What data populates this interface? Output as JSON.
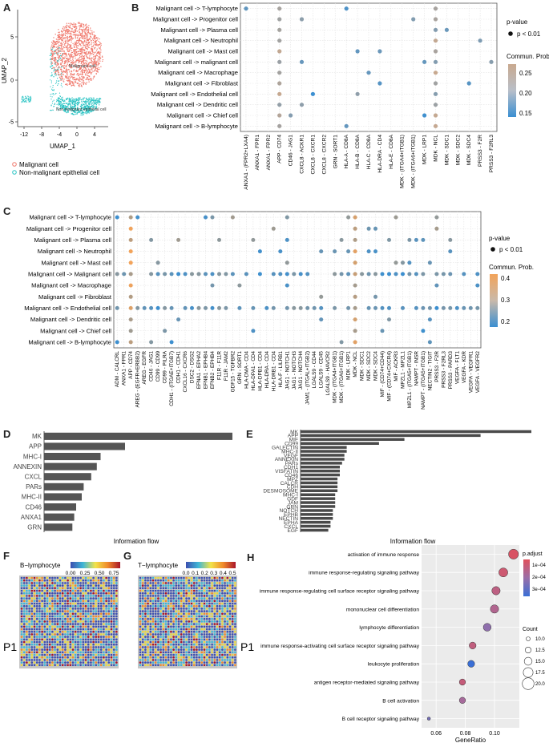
{
  "panel_labels": {
    "a": "A",
    "b": "B",
    "c": "C",
    "d": "D",
    "e": "E",
    "f": "F",
    "g": "G",
    "h": "H"
  },
  "colors": {
    "malignant": "#f07a6e",
    "nonmalignant": "#2cc4c4",
    "dot_low": "#3a8fd1",
    "dot_high_b": "#c9a98f",
    "dot_high_c": "#f2a35a",
    "bar": "#555555",
    "bar_e": "#4a4a4a"
  },
  "panel_a": {
    "ylabel": "UMAP_2",
    "xlabel": "UMAP_1",
    "xticks": [
      "-12",
      "-8",
      "-4",
      "0",
      "4"
    ],
    "yticks": [
      "5",
      "0",
      "-5"
    ],
    "cluster_label_1": "Malignant cell",
    "cluster_label_2": "Non-malignant epithelial cell",
    "legend": [
      "Malignant cell",
      "Non-malignant epithelial cell"
    ]
  },
  "panel_b": {
    "legend_pvalue_title": "p-value",
    "legend_pvalue_item": "p < 0.01",
    "legend_color_title": "Commun. Prob.",
    "legend_ticks": [
      "0.25",
      "0.20",
      "0.15"
    ],
    "rows": [
      "Malignant cell -> T-lymphocyte",
      "Malignant cell -> Progenitor cell",
      "Malignant cell -> Plasma cell",
      "Malignant cell -> Neutrophil",
      "Malignant cell -> Mast cell",
      "Malignant cell -> malignant cell",
      "Malignant cell -> Macrophage",
      "Malignant cell -> Fibroblast",
      "Malignant cell -> Endothelial cell",
      "Malignant cell -> Dendritic cell",
      "Malignant cell -> Chief cell",
      "Malignant cell -> B-lymphocyte"
    ],
    "cols": [
      "ANXA1 - (FPR2+LXA4)",
      "ANXA1 - FPR1",
      "ANXA1 - FPR2",
      "APP - CD74",
      "CD46 - JAG1",
      "CXCL8 - ACKR1",
      "CXCL8 - CXCR1",
      "CXCL8 - CXCR2",
      "GRN - SORT1",
      "HLA-A - CD8A",
      "HLA-B - CD8A",
      "HLA-C - CD8A",
      "HLA-DRA - CD4",
      "HLA-E - CD8A",
      "MDK - (ITGA4+ITGB1)",
      "MDK - (ITGA6+ITGB1)",
      "MDK - LRP1",
      "MDK - NCL",
      "MDK - SDC1",
      "MDK - SDC2",
      "MDK - SDC4",
      "PRSS3 - F2R",
      "PRSS3 - F2RL3"
    ]
  },
  "panel_c": {
    "legend_pvalue_title": "p-value",
    "legend_pvalue_item": "p < 0.01",
    "legend_color_title": "Commun. Prob.",
    "legend_ticks": [
      "0.4",
      "0.3",
      "0.2"
    ],
    "rows": [
      "Malignant cell -> T-lymphocyte",
      "Malignant cell -> Progenitor cell",
      "Malignant cell -> Plasma cell",
      "Malignant cell -> Neutrophil",
      "Malignant cell -> Mast cell",
      "Malignant cell -> Malignant cell",
      "Malignant cell -> Macrophage",
      "Malignant cell -> Fibroblast",
      "Malignant cell -> Endothelial cell",
      "Malignant cell -> Dendritic cell",
      "Malignant cell -> Chief cell",
      "Malignant cell -> B-lymphocyte"
    ],
    "cols": [
      "ADM - CALCRL",
      "ANXA1 - FPR1",
      "APP - CD74",
      "AREG - (EGFR+ERBB2)",
      "AREG - EGFR",
      "CD46 - JAG1",
      "CD99 - CD99",
      "CD99 - PILRA",
      "CDH1 - (ITGAE+ITGB7)",
      "CDH1 - CDH1",
      "CXCL16 - CXCR6",
      "DSC2 - DSG2",
      "EFNA1 - EPHA2",
      "EFNB1 - EPHB4",
      "EFNB2 - EPHB4",
      "F11R - F11R",
      "F11R - JAM2",
      "GDF15 - TGFBR2",
      "GRN - SORT1",
      "HLA-DMA - CD4",
      "HLA-DPA1 - CD4",
      "HLA-DPB1 - CD4",
      "HLA-DRA - CD4",
      "HLA-DRB1 - CD4",
      "HLA-F - LILRB1",
      "JAG1 - NOTCH1",
      "JAG1 - NOTCH3",
      "JAG1 - NOTCH4",
      "JAM1 - (ITGAL+ITGB2)",
      "LGALS9 - CD44",
      "LGALS9 - CD45",
      "LGALS9 - HAVCR2",
      "MDK - (ITGA4+ITGB1)",
      "MDK - (ITGA6+ITGB1)",
      "MDK - LRP1",
      "MDK - NCL",
      "MDK - SDC1",
      "MDK - SDC2",
      "MDK - SDC4",
      "MIF - (CD74+CD44)",
      "MIF - (CD74+CXCR4)",
      "MIF - ACKR3",
      "MPZL1 - MPZL1",
      "MPZL1 - (ITGA5+ITGB1)",
      "NAMPT - INSR",
      "NAMPT - (ITGA5+ITGB1)",
      "NECTIN2 - TIGIT",
      "PRSS3 - F2R",
      "PRSS3 - F2RL3",
      "PRSS3 - PARD3",
      "VEGFA - FLT1",
      "VEGFA - KDR",
      "VEGFA - VEGFR1",
      "VEGFA - VEGFR2"
    ]
  },
  "chart_data": [
    {
      "type": "bar",
      "panel": "D",
      "orientation": "horizontal",
      "categories": [
        "MK",
        "APP",
        "MHC-I",
        "ANNEXIN",
        "CXCL",
        "PARs",
        "MHC-II",
        "CD46",
        "ANXA1",
        "GRN"
      ],
      "values": [
        1.0,
        0.43,
        0.3,
        0.28,
        0.25,
        0.21,
        0.2,
        0.17,
        0.16,
        0.15
      ],
      "xlabel": "Information flow"
    },
    {
      "type": "bar",
      "panel": "E",
      "orientation": "horizontal",
      "categories": [
        "MK",
        "APP",
        "MIF",
        "CD99",
        "GALECTIN",
        "MHC-II",
        "VEGF",
        "ANNEXIN",
        "PARs",
        "CDH1",
        "VISFATIN",
        "CD46",
        "MPZ",
        "CALCR",
        "CDH",
        "DESMOSOME",
        "MHC-I",
        "GDF",
        "JAM",
        "GRN",
        "NOTCH",
        "EPHB",
        "NECTIN",
        "EPHA",
        "CXCL",
        "EGF"
      ],
      "values": [
        1.0,
        0.78,
        0.45,
        0.34,
        0.2,
        0.2,
        0.19,
        0.19,
        0.18,
        0.17,
        0.17,
        0.17,
        0.16,
        0.16,
        0.16,
        0.16,
        0.15,
        0.15,
        0.15,
        0.15,
        0.14,
        0.14,
        0.14,
        0.13,
        0.13,
        0.12
      ],
      "xlabel": "Information flow"
    },
    {
      "type": "scatter",
      "panel": "H",
      "categories": [
        "activation of immune response",
        "immune response-regulating signaling pathway",
        "immune response-regulating cell surface receptor signaling pathway",
        "mononuclear cell differentiation",
        "lymphocyte differentiation",
        "immune response-activating cell surface receptor signaling pathway",
        "leukocyte proliferation",
        "antigen receptor-mediated signaling pathway",
        "B cell activation",
        "B cell receptor signaling pathway"
      ],
      "x": [
        0.113,
        0.106,
        0.101,
        0.1,
        0.095,
        0.085,
        0.084,
        0.078,
        0.078,
        0.055
      ],
      "count": [
        21,
        19,
        18,
        18,
        17,
        15,
        15,
        14,
        14,
        8
      ],
      "padj": [
        0.2,
        0.5,
        0.9,
        1.2,
        2.0,
        0.8,
        3.6,
        0.7,
        1.5,
        2.5
      ],
      "xlabel": "GeneRatio",
      "xticks": [
        "0.06",
        "0.08",
        "0.10"
      ],
      "legend_padj_title": "p.adjust",
      "legend_padj_ticks": [
        "1e−04",
        "2e−04",
        "3e−04"
      ],
      "legend_count_title": "Count",
      "legend_count_ticks": [
        "10.0",
        "12.5",
        "15.0",
        "17.5",
        "20.0"
      ]
    }
  ],
  "panel_f": {
    "title": "B−lymphocyte",
    "ticks": [
      "0.00",
      "0.25",
      "0.50",
      "0.75"
    ],
    "sample": "P1"
  },
  "panel_g": {
    "title": "T−lymphocyte",
    "ticks": [
      "0.0",
      "0.1",
      "0.2",
      "0.3",
      "0.4",
      "0.5"
    ],
    "sample": "P1"
  },
  "panel_h": {
    "sample": "P1"
  }
}
